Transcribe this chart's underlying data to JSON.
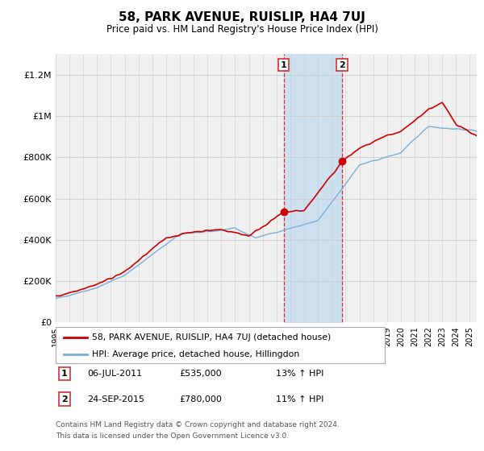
{
  "title": "58, PARK AVENUE, RUISLIP, HA4 7UJ",
  "subtitle": "Price paid vs. HM Land Registry's House Price Index (HPI)",
  "ylim": [
    0,
    1300000
  ],
  "yticks": [
    0,
    200000,
    400000,
    600000,
    800000,
    1000000,
    1200000
  ],
  "ytick_labels": [
    "£0",
    "£200K",
    "£400K",
    "£600K",
    "£800K",
    "£1M",
    "£1.2M"
  ],
  "red_color": "#cc0000",
  "blue_color": "#7aadd4",
  "shade_color": "#cce0f0",
  "marker1_year": 2011.52,
  "marker1_price": 535000,
  "marker1_label": "06-JUL-2011",
  "marker1_price_label": "£535,000",
  "marker1_hpi_label": "13% ↑ HPI",
  "marker2_year": 2015.74,
  "marker2_price": 780000,
  "marker2_label": "24-SEP-2015",
  "marker2_price_label": "£780,000",
  "marker2_hpi_label": "11% ↑ HPI",
  "legend_line1": "58, PARK AVENUE, RUISLIP, HA4 7UJ (detached house)",
  "legend_line2": "HPI: Average price, detached house, Hillingdon",
  "footer1": "Contains HM Land Registry data © Crown copyright and database right 2024.",
  "footer2": "This data is licensed under the Open Government Licence v3.0.",
  "background_color": "#ffffff",
  "plot_bg_color": "#f0f0f0"
}
